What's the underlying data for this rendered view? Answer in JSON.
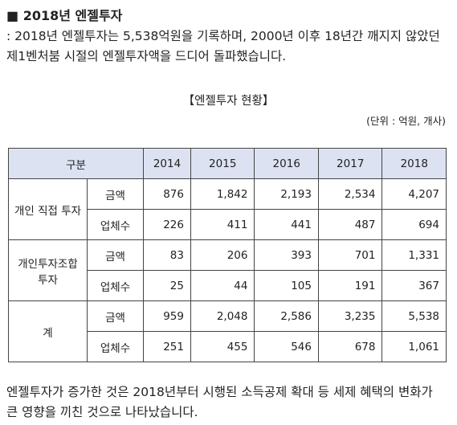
{
  "heading": "■ 2018년 엔젤투자",
  "intro": {
    "lines": [
      ": 2018년 엔젤투자는 5,538억원을 기록하며, 2000년 이후 18년간 깨지지 않았던",
      "제1벤처붐 시절의 엔젤투자액을 드디어 돌파했습니다."
    ]
  },
  "table": {
    "title": "【엔젤투자 현황】",
    "unit": "(단위 : 억원, 개사)",
    "header": [
      "구분",
      "2014",
      "2015",
      "2016",
      "2017",
      "2018"
    ],
    "groups": [
      {
        "label": "개인 직접 투자",
        "rows": [
          {
            "label": "금액",
            "values": [
              "876",
              "1,842",
              "2,193",
              "2,534",
              "4,207"
            ]
          },
          {
            "label": "업체수",
            "values": [
              "226",
              "411",
              "441",
              "487",
              "694"
            ]
          }
        ]
      },
      {
        "label": "개인투자조합 투자",
        "rows": [
          {
            "label": "금액",
            "values": [
              "83",
              "206",
              "393",
              "701",
              "1,331"
            ]
          },
          {
            "label": "업체수",
            "values": [
              "25",
              "44",
              "105",
              "191",
              "367"
            ]
          }
        ]
      },
      {
        "label": "계",
        "rows": [
          {
            "label": "금액",
            "values": [
              "959",
              "2,048",
              "2,586",
              "3,235",
              "5,538"
            ]
          },
          {
            "label": "업체수",
            "values": [
              "251",
              "455",
              "546",
              "678",
              "1,061"
            ]
          }
        ]
      }
    ]
  },
  "conclusion": {
    "lines": [
      "엔젤투자가 증가한 것은 2018년부터 시행된 소득공제 확대 등 세제 혜택의 변화가",
      "큰 영향을 끼친 것으로 나타났습니다."
    ]
  }
}
